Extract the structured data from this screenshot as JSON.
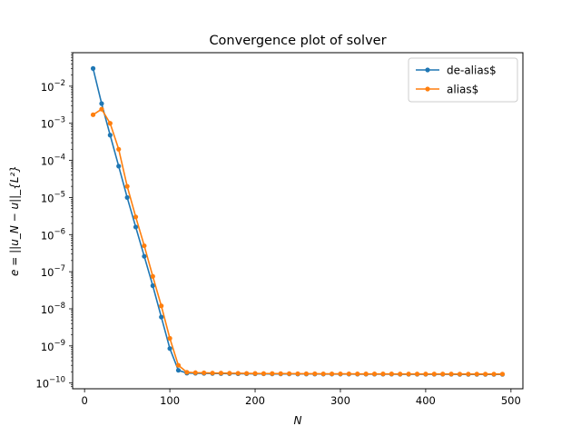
{
  "chart_data": {
    "type": "line",
    "title": "Convergence plot of solver",
    "xlabel": "N",
    "ylabel": "e = ||u_N − u||_{L²}",
    "xlim": [
      -14,
      514
    ],
    "ylim": [
      7e-11,
      0.08
    ],
    "yscale": "log",
    "grid": false,
    "legend_position": "top-right",
    "x_ticks": [
      0,
      100,
      200,
      300,
      400,
      500
    ],
    "y_ticks": [
      1e-10,
      1e-09,
      1e-08,
      1e-07,
      1e-06,
      1e-05,
      0.0001,
      0.001,
      0.01
    ],
    "y_tick_labels": [
      {
        "base": "10",
        "exp": "−10"
      },
      {
        "base": "10",
        "exp": "−9"
      },
      {
        "base": "10",
        "exp": "−8"
      },
      {
        "base": "10",
        "exp": "−7"
      },
      {
        "base": "10",
        "exp": "−6"
      },
      {
        "base": "10",
        "exp": "−5"
      },
      {
        "base": "10",
        "exp": "−4"
      },
      {
        "base": "10",
        "exp": "−3"
      },
      {
        "base": "10",
        "exp": "−2"
      }
    ],
    "x": [
      10,
      20,
      30,
      40,
      50,
      60,
      70,
      80,
      90,
      100,
      110,
      120,
      130,
      140,
      150,
      160,
      170,
      180,
      190,
      200,
      210,
      220,
      230,
      240,
      250,
      260,
      270,
      280,
      290,
      300,
      310,
      320,
      330,
      340,
      350,
      360,
      370,
      380,
      390,
      400,
      410,
      420,
      430,
      440,
      450,
      460,
      470,
      480,
      490
    ],
    "series": [
      {
        "name": "de-alias$",
        "color": "#1f77b4",
        "values": [
          0.03,
          0.0034,
          0.00048,
          7e-05,
          1e-05,
          1.6e-06,
          2.6e-07,
          4.2e-08,
          6e-09,
          8.5e-10,
          2.2e-10,
          1.85e-10,
          1.83e-10,
          1.82e-10,
          1.81e-10,
          1.8e-10,
          1.79e-10,
          1.78e-10,
          1.78e-10,
          1.77e-10,
          1.77e-10,
          1.76e-10,
          1.76e-10,
          1.76e-10,
          1.75e-10,
          1.75e-10,
          1.75e-10,
          1.74e-10,
          1.74e-10,
          1.74e-10,
          1.74e-10,
          1.73e-10,
          1.73e-10,
          1.73e-10,
          1.73e-10,
          1.73e-10,
          1.72e-10,
          1.72e-10,
          1.72e-10,
          1.72e-10,
          1.72e-10,
          1.72e-10,
          1.72e-10,
          1.71e-10,
          1.71e-10,
          1.71e-10,
          1.71e-10,
          1.71e-10,
          1.71e-10
        ]
      },
      {
        "name": "alias$",
        "color": "#ff7f0e",
        "values": [
          0.0017,
          0.0024,
          0.001,
          0.0002,
          2e-05,
          3e-06,
          5e-07,
          7.5e-08,
          1.2e-08,
          1.6e-09,
          3e-10,
          1.95e-10,
          1.9e-10,
          1.88e-10,
          1.86e-10,
          1.85e-10,
          1.84e-10,
          1.83e-10,
          1.82e-10,
          1.81e-10,
          1.8e-10,
          1.8e-10,
          1.79e-10,
          1.79e-10,
          1.78e-10,
          1.78e-10,
          1.78e-10,
          1.77e-10,
          1.77e-10,
          1.77e-10,
          1.77e-10,
          1.76e-10,
          1.76e-10,
          1.76e-10,
          1.76e-10,
          1.76e-10,
          1.75e-10,
          1.75e-10,
          1.75e-10,
          1.75e-10,
          1.75e-10,
          1.75e-10,
          1.75e-10,
          1.74e-10,
          1.74e-10,
          1.74e-10,
          1.74e-10,
          1.74e-10,
          1.74e-10
        ]
      }
    ]
  }
}
